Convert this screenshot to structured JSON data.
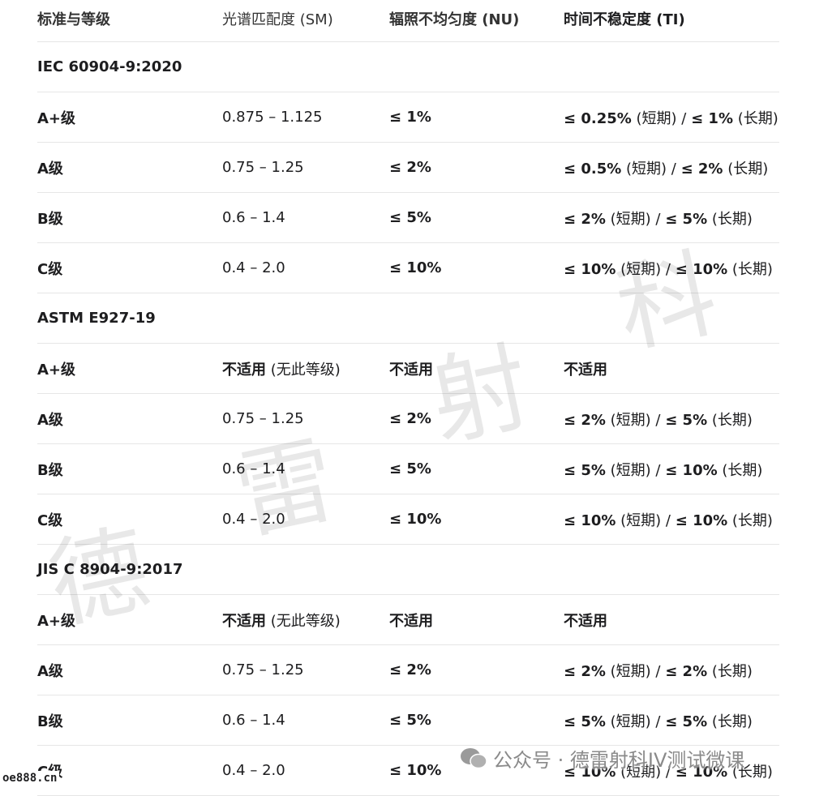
{
  "table": {
    "header": [
      "标准与等级",
      "光谱匹配度 (SM)",
      "辐照不均匀度 (NU)",
      "时间不稳定度 (TI)"
    ],
    "rows": [
      {
        "section": "IEC 60904-9:2020"
      },
      {
        "cells": [
          "A+级",
          "0.875 – 1.125",
          "≤ 1%",
          [
            {
              "text": "≤ 0.25%",
              "bold": true
            },
            {
              "text": " (短期) / ",
              "bold": false
            },
            {
              "text": "≤ 1%",
              "bold": true
            },
            {
              "text": " (长期)",
              "bold": false
            }
          ]
        ]
      },
      {
        "cells": [
          "A级",
          "0.75 – 1.25",
          "≤ 2%",
          [
            {
              "text": "≤ 0.5%",
              "bold": true
            },
            {
              "text": " (短期) / ",
              "bold": false
            },
            {
              "text": "≤ 2%",
              "bold": true
            },
            {
              "text": " (长期)",
              "bold": false
            }
          ]
        ]
      },
      {
        "cells": [
          "B级",
          "0.6 – 1.4",
          "≤ 5%",
          [
            {
              "text": "≤ 2%",
              "bold": true
            },
            {
              "text": " (短期) / ",
              "bold": false
            },
            {
              "text": "≤ 5%",
              "bold": true
            },
            {
              "text": " (长期)",
              "bold": false
            }
          ]
        ]
      },
      {
        "cells": [
          "C级",
          "0.4 – 2.0",
          "≤ 10%",
          [
            {
              "text": "≤ 10%",
              "bold": true
            },
            {
              "text": " (短期) / ",
              "bold": false
            },
            {
              "text": "≤ 10%",
              "bold": true
            },
            {
              "text": " (长期)",
              "bold": false
            }
          ]
        ]
      },
      {
        "section": "ASTM E927-19"
      },
      {
        "cells": [
          "A+级",
          [
            {
              "text": "不适用",
              "bold": true
            },
            {
              "text": " (无此等级)",
              "bold": false
            }
          ],
          "不适用",
          "不适用"
        ]
      },
      {
        "cells": [
          "A级",
          "0.75 – 1.25",
          "≤ 2%",
          [
            {
              "text": "≤ 2%",
              "bold": true
            },
            {
              "text": " (短期) / ",
              "bold": false
            },
            {
              "text": "≤ 5%",
              "bold": true
            },
            {
              "text": " (长期)",
              "bold": false
            }
          ]
        ]
      },
      {
        "cells": [
          "B级",
          "0.6 – 1.4",
          "≤ 5%",
          [
            {
              "text": "≤ 5%",
              "bold": true
            },
            {
              "text": " (短期) / ",
              "bold": false
            },
            {
              "text": "≤ 10%",
              "bold": true
            },
            {
              "text": " (长期)",
              "bold": false
            }
          ]
        ]
      },
      {
        "cells": [
          "C级",
          "0.4 – 2.0",
          "≤ 10%",
          [
            {
              "text": "≤ 10%",
              "bold": true
            },
            {
              "text": " (短期) / ",
              "bold": false
            },
            {
              "text": "≤ 10%",
              "bold": true
            },
            {
              "text": " (长期)",
              "bold": false
            }
          ]
        ]
      },
      {
        "section": "JIS C 8904-9:2017"
      },
      {
        "cells": [
          "A+级",
          [
            {
              "text": "不适用",
              "bold": true
            },
            {
              "text": " (无此等级)",
              "bold": false
            }
          ],
          "不适用",
          "不适用"
        ]
      },
      {
        "cells": [
          "A级",
          "0.75 – 1.25",
          "≤ 2%",
          [
            {
              "text": "≤ 2%",
              "bold": true
            },
            {
              "text": " (短期) / ",
              "bold": false
            },
            {
              "text": "≤ 2%",
              "bold": true
            },
            {
              "text": " (长期)",
              "bold": false
            }
          ]
        ]
      },
      {
        "cells": [
          "B级",
          "0.6 – 1.4",
          "≤ 5%",
          [
            {
              "text": "≤ 5%",
              "bold": true
            },
            {
              "text": " (短期) / ",
              "bold": false
            },
            {
              "text": "≤ 5%",
              "bold": true
            },
            {
              "text": " (长期)",
              "bold": false
            }
          ]
        ]
      },
      {
        "cells": [
          "C级",
          "0.4 – 2.0",
          "≤ 10%",
          [
            {
              "text": "≤ 10%",
              "bold": true
            },
            {
              "text": " (短期) / ",
              "bold": false
            },
            {
              "text": "≤ 10%",
              "bold": true
            },
            {
              "text": " (长期)",
              "bold": false
            }
          ]
        ]
      }
    ]
  },
  "watermark": [
    "德",
    "雷",
    "射",
    "科"
  ],
  "footer": {
    "account": "公众号 · 德雷射科IV测试微课",
    "site": "oe888.cn"
  }
}
